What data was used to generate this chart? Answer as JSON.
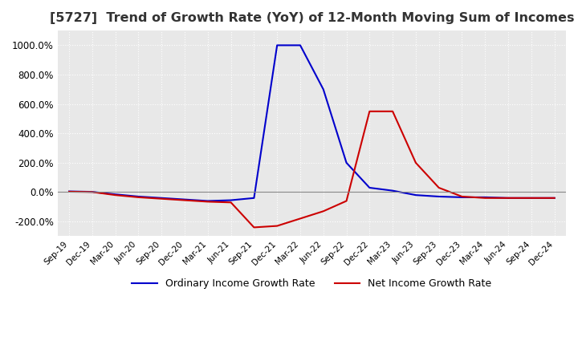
{
  "title": "[5727]  Trend of Growth Rate (YoY) of 12-Month Moving Sum of Incomes",
  "title_fontsize": 11.5,
  "ylim": [
    -300,
    1100
  ],
  "yticks": [
    -200,
    0,
    200,
    400,
    600,
    800,
    1000
  ],
  "ytick_labels": [
    "-200.0%",
    "0.0%",
    "200.0%",
    "400.0%",
    "600.0%",
    "800.0%",
    "1000.0%"
  ],
  "background_color": "#ffffff",
  "plot_bg_color": "#e8e8e8",
  "grid_color": "#ffffff",
  "line1_color": "#0000cc",
  "line2_color": "#cc0000",
  "legend_labels": [
    "Ordinary Income Growth Rate",
    "Net Income Growth Rate"
  ],
  "x_labels": [
    "Sep-19",
    "Dec-19",
    "Mar-20",
    "Jun-20",
    "Sep-20",
    "Dec-20",
    "Mar-21",
    "Jun-21",
    "Sep-21",
    "Dec-21",
    "Mar-22",
    "Jun-22",
    "Sep-22",
    "Dec-22",
    "Mar-23",
    "Jun-23",
    "Sep-23",
    "Dec-23",
    "Mar-24",
    "Jun-24",
    "Sep-24",
    "Dec-24"
  ],
  "ordinary_income": [
    5,
    2,
    -15,
    -30,
    -40,
    -50,
    -60,
    -55,
    -40,
    1000,
    1000,
    700,
    200,
    30,
    10,
    -20,
    -30,
    -35,
    -35,
    -40,
    -40,
    -40
  ],
  "net_income": [
    3,
    1,
    -20,
    -35,
    -45,
    -55,
    -65,
    -70,
    -240,
    -230,
    -180,
    -130,
    -60,
    550,
    550,
    200,
    30,
    -30,
    -40,
    -40,
    -40,
    -40
  ]
}
